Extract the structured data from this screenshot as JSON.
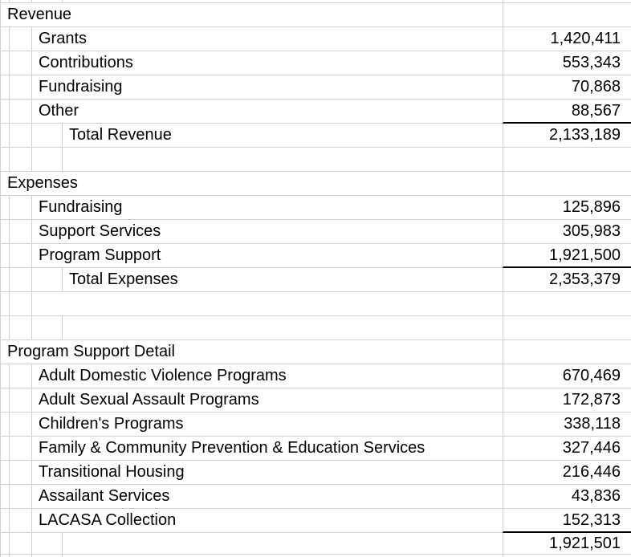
{
  "sheet": {
    "colors": {
      "gridline": "#d0d0d0",
      "underline": "#000000",
      "text": "#000000",
      "background": "#ffffff"
    },
    "rows": [
      {
        "type": "top-spacer",
        "label": "",
        "value": "",
        "underline": false
      },
      {
        "type": "section-header",
        "label": "Revenue",
        "value": "",
        "underline": false
      },
      {
        "type": "line-item",
        "label": "Grants",
        "value": "1,420,411",
        "underline": false
      },
      {
        "type": "line-item",
        "label": "Contributions",
        "value": "553,343",
        "underline": false
      },
      {
        "type": "line-item",
        "label": "Fundraising",
        "value": "70,868",
        "underline": false
      },
      {
        "type": "line-item",
        "label": "Other",
        "value": "88,567",
        "underline": true
      },
      {
        "type": "total",
        "label": "Total Revenue",
        "value": "2,133,189",
        "underline": false
      },
      {
        "type": "empty",
        "label": "",
        "value": "",
        "underline": false
      },
      {
        "type": "section-header",
        "label": "Expenses",
        "value": "",
        "underline": false
      },
      {
        "type": "line-item",
        "label": "Fundraising",
        "value": "125,896",
        "underline": false
      },
      {
        "type": "line-item",
        "label": "Support Services",
        "value": "305,983",
        "underline": false
      },
      {
        "type": "line-item",
        "label": "Program Support",
        "value": "1,921,500",
        "underline": true
      },
      {
        "type": "total",
        "label": "Total Expenses",
        "value": "2,353,379",
        "underline": false
      },
      {
        "type": "empty-no-c",
        "label": "",
        "value": "",
        "underline": false
      },
      {
        "type": "empty",
        "label": "",
        "value": "",
        "underline": false
      },
      {
        "type": "section-header",
        "label": "Program Support Detail",
        "value": "",
        "underline": false
      },
      {
        "type": "line-item",
        "label": "Adult Domestic Violence Programs",
        "value": "670,469",
        "underline": false
      },
      {
        "type": "line-item",
        "label": "Adult Sexual Assault Programs",
        "value": "172,873",
        "underline": false
      },
      {
        "type": "line-item",
        "label": "Children's Programs",
        "value": "338,118",
        "underline": false
      },
      {
        "type": "line-item",
        "label": "Family & Community Prevention & Education Services",
        "value": "327,446",
        "underline": false
      },
      {
        "type": "line-item",
        "label": "Transitional Housing",
        "value": "216,446",
        "underline": false
      },
      {
        "type": "line-item",
        "label": "Assailant Services",
        "value": "43,836",
        "underline": false
      },
      {
        "type": "line-item",
        "label": "LACASA Collection",
        "value": "152,313",
        "underline": true
      },
      {
        "type": "grand-total",
        "label": "",
        "value": "1,921,501",
        "underline": false
      },
      {
        "type": "bottom-spacer",
        "label": "",
        "value": "",
        "underline": false
      }
    ]
  }
}
